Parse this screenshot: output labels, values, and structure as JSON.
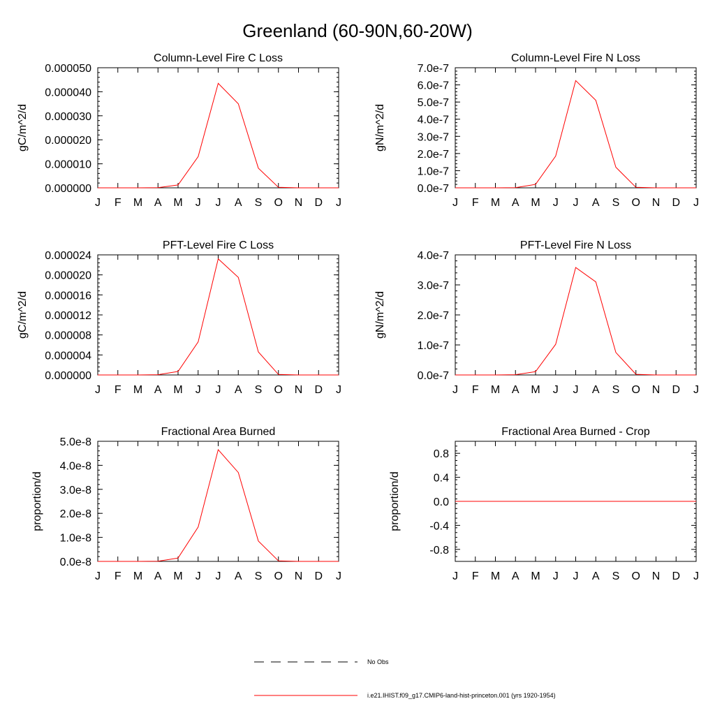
{
  "figure": {
    "title": "Greenland (60-90N,60-20W)"
  },
  "months": [
    "J",
    "F",
    "M",
    "A",
    "M",
    "J",
    "J",
    "A",
    "S",
    "O",
    "N",
    "D",
    "J"
  ],
  "colors": {
    "model": "#ff0000",
    "obs": "#000000",
    "frame": "#000000"
  },
  "legend": {
    "obs_label": "No Obs",
    "model_label": "i.e21.IHIST.f09_g17.CMIP6-land-hist-princeton.001 (yrs 1920-1954)"
  },
  "chart_data": [
    {
      "type": "line",
      "title": "Column-Level Fire C Loss",
      "ylabel": "gC/m^2/d",
      "ylim": [
        0,
        5e-05
      ],
      "yticks": [
        0,
        1e-05,
        2e-05,
        3e-05,
        4e-05,
        5e-05
      ],
      "ytick_labels": [
        "0.000000",
        "0.000010",
        "0.000020",
        "0.000030",
        "0.000040",
        "0.000050"
      ],
      "series": [
        {
          "values": [
            0,
            0,
            0,
            1e-07,
            1.2e-06,
            1.3e-05,
            4.35e-05,
            3.5e-05,
            8.2e-06,
            2e-07,
            0,
            0,
            0
          ]
        }
      ]
    },
    {
      "type": "line",
      "title": "Column-Level Fire N Loss",
      "ylabel": "gN/m^2/d",
      "ylim": [
        0,
        7e-07
      ],
      "yticks": [
        0,
        1e-07,
        2e-07,
        3e-07,
        4e-07,
        5e-07,
        6e-07,
        7e-07
      ],
      "ytick_labels": [
        "0.0e-7",
        "1.0e-7",
        "2.0e-7",
        "3.0e-7",
        "4.0e-7",
        "5.0e-7",
        "6.0e-7",
        "7.0e-7"
      ],
      "series": [
        {
          "values": [
            0,
            0,
            0,
            1e-09,
            2e-08,
            1.85e-07,
            6.25e-07,
            5.1e-07,
            1.2e-07,
            3e-09,
            0,
            0,
            0
          ]
        }
      ]
    },
    {
      "type": "line",
      "title": "PFT-Level Fire C Loss",
      "ylabel": "gC/m^2/d",
      "ylim": [
        0,
        2.4e-05
      ],
      "yticks": [
        0,
        4e-06,
        8e-06,
        1.2e-05,
        1.6e-05,
        2e-05,
        2.4e-05
      ],
      "ytick_labels": [
        "0.000000",
        "0.000004",
        "0.000008",
        "0.000012",
        "0.000016",
        "0.000020",
        "0.000024"
      ],
      "series": [
        {
          "values": [
            0,
            0,
            0,
            5e-08,
            7e-07,
            6.6e-06,
            2.32e-05,
            1.95e-05,
            4.6e-06,
            1e-07,
            0,
            0,
            0
          ]
        }
      ]
    },
    {
      "type": "line",
      "title": "PFT-Level Fire N Loss",
      "ylabel": "gN/m^2/d",
      "ylim": [
        0,
        4e-07
      ],
      "yticks": [
        0,
        1e-07,
        2e-07,
        3e-07,
        4e-07
      ],
      "ytick_labels": [
        "0.0e-7",
        "1.0e-7",
        "2.0e-7",
        "3.0e-7",
        "4.0e-7"
      ],
      "series": [
        {
          "values": [
            0,
            0,
            0,
            1e-09,
            1.1e-08,
            1.02e-07,
            3.58e-07,
            3.1e-07,
            7.5e-08,
            2e-09,
            0,
            0,
            0
          ]
        }
      ]
    },
    {
      "type": "line",
      "title": "Fractional Area Burned",
      "ylabel": "proportion/d",
      "ylim": [
        0,
        5e-08
      ],
      "yticks": [
        0,
        1e-08,
        2e-08,
        3e-08,
        4e-08,
        5e-08
      ],
      "ytick_labels": [
        "0.0e-8",
        "1.0e-8",
        "2.0e-8",
        "3.0e-8",
        "4.0e-8",
        "5.0e-8"
      ],
      "series": [
        {
          "values": [
            0,
            0,
            0,
            1e-10,
            1.4e-09,
            1.43e-08,
            4.65e-08,
            3.7e-08,
            8.5e-09,
            2e-10,
            0,
            0,
            0
          ]
        }
      ]
    },
    {
      "type": "line",
      "title": "Fractional Area Burned - Crop",
      "ylabel": "proportion/d",
      "ylim": [
        -1,
        1
      ],
      "yticks": [
        -0.8,
        -0.4,
        0,
        0.4,
        0.8
      ],
      "ytick_labels": [
        "-0.8",
        "-0.4",
        "0.0",
        "0.4",
        "0.8"
      ],
      "series": [
        {
          "values": [
            0,
            0,
            0,
            0,
            0,
            0,
            0,
            0,
            0,
            0,
            0,
            0,
            0
          ]
        }
      ]
    }
  ]
}
